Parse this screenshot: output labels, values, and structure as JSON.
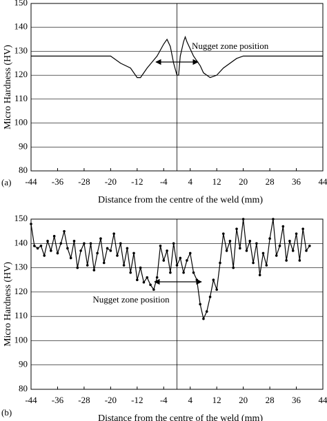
{
  "chart_data": [
    {
      "type": "line",
      "panel_label": "(a)",
      "xlabel": "Distance from the centre of the weld (mm)",
      "ylabel": "Micro Hardness (HV)",
      "annotation": "Nugget zone position",
      "color": "#000000",
      "markers": false,
      "grid": true,
      "x": [
        -44,
        -20,
        -17,
        -14,
        -12,
        -11,
        -9,
        -6,
        -4,
        -3,
        -2,
        -1,
        0,
        0.5,
        1,
        2,
        2.5,
        3,
        5,
        7,
        8,
        10,
        12,
        14,
        18,
        20,
        44
      ],
      "values": [
        128,
        128,
        125,
        123,
        119,
        119,
        123,
        128,
        133,
        135,
        132,
        125,
        120,
        120,
        128,
        134,
        136,
        134,
        128,
        124,
        121,
        119,
        120,
        123,
        127,
        128,
        128
      ],
      "xlim": [
        -44,
        44
      ],
      "xticks": [
        -44,
        -36,
        -28,
        -20,
        -12,
        -4,
        4,
        12,
        20,
        28,
        36,
        44
      ],
      "ylim": [
        80,
        150
      ],
      "yticks": [
        80,
        90,
        100,
        110,
        120,
        130,
        140,
        150
      ]
    },
    {
      "type": "line",
      "panel_label": "(b)",
      "xlabel": "Distance from the centre of the weld (mm)",
      "ylabel": "Micro Hardness (HV)",
      "annotation": "Nugget zone position",
      "color": "#000000",
      "markers": true,
      "grid": true,
      "x": [
        -44,
        -43,
        -42,
        -41,
        -40,
        -39,
        -38,
        -37,
        -36,
        -35,
        -34,
        -33,
        -32,
        -31,
        -30,
        -29,
        -28,
        -27,
        -26,
        -25,
        -24,
        -23,
        -22,
        -21,
        -20,
        -19,
        -18,
        -17,
        -16,
        -15,
        -14,
        -13,
        -12,
        -11,
        -10,
        -9,
        -8,
        -7,
        -6,
        -5,
        -4,
        -3,
        -2,
        -1,
        0,
        1,
        2,
        3,
        4,
        5,
        6,
        7,
        8,
        9,
        10,
        11,
        12,
        13,
        14,
        15,
        16,
        17,
        18,
        19,
        20,
        21,
        22,
        23,
        24,
        25,
        26,
        27,
        28,
        29,
        30,
        31,
        32,
        33,
        34,
        35,
        36,
        37,
        38,
        39,
        40
      ],
      "values": [
        148,
        139,
        138,
        139,
        135,
        141,
        137,
        143,
        136,
        140,
        145,
        138,
        134,
        141,
        130,
        137,
        140,
        131,
        140,
        129,
        136,
        142,
        132,
        138,
        137,
        144,
        135,
        140,
        131,
        138,
        128,
        136,
        125,
        130,
        124,
        126,
        123,
        121,
        126,
        139,
        133,
        137,
        128,
        140,
        131,
        134,
        128,
        133,
        136,
        128,
        125,
        115,
        109,
        112,
        118,
        125,
        121,
        132,
        144,
        137,
        141,
        130,
        146,
        138,
        150,
        137,
        141,
        132,
        140,
        127,
        136,
        131,
        142,
        150,
        135,
        139,
        147,
        133,
        141,
        137,
        144,
        133,
        146,
        137,
        139
      ],
      "xlim": [
        -44,
        44
      ],
      "xticks": [
        -44,
        -36,
        -28,
        -20,
        -12,
        -4,
        4,
        12,
        20,
        28,
        36,
        44
      ],
      "ylim": [
        80,
        150
      ],
      "yticks": [
        80,
        90,
        100,
        110,
        120,
        130,
        140,
        150
      ]
    }
  ]
}
